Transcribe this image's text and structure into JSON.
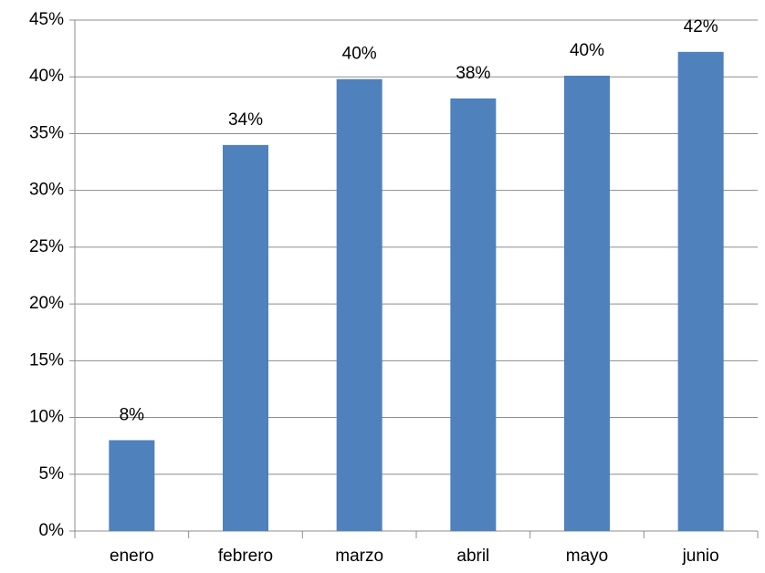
{
  "chart_data": {
    "type": "bar",
    "categories": [
      "enero",
      "febrero",
      "marzo",
      "abril",
      "mayo",
      "junio"
    ],
    "values": [
      8,
      34,
      39.8,
      38.1,
      40.1,
      42.2
    ],
    "value_labels": [
      "8%",
      "34%",
      "40%",
      "38%",
      "40%",
      "42%"
    ],
    "color": "#4f81bd",
    "ylim": [
      0,
      45
    ],
    "yticks": [
      {
        "value": 0,
        "label": "0%"
      },
      {
        "value": 5,
        "label": "5%"
      },
      {
        "value": 10,
        "label": "10%"
      },
      {
        "value": 15,
        "label": "15%"
      },
      {
        "value": 20,
        "label": "20%"
      },
      {
        "value": 25,
        "label": "25%"
      },
      {
        "value": 30,
        "label": "30%"
      },
      {
        "value": 35,
        "label": "35%"
      },
      {
        "value": 40,
        "label": "40%"
      },
      {
        "value": 45,
        "label": "45%"
      }
    ],
    "grid": true
  }
}
